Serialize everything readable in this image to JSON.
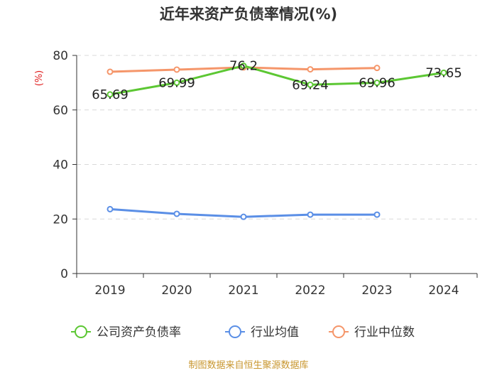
{
  "chart_data": {
    "type": "line",
    "title": "近年来资产负债率情况(%)",
    "ylabel": "(%)",
    "x": [
      "2019",
      "2020",
      "2021",
      "2022",
      "2023",
      "2024"
    ],
    "ylim": [
      0,
      80
    ],
    "yticks": [
      0,
      20,
      40,
      60,
      80
    ],
    "grid": true,
    "legend_position": "bottom",
    "series": [
      {
        "name": "公司资产负债率",
        "color": "#5cc733",
        "values": [
          65.69,
          69.99,
          76.2,
          69.24,
          69.96,
          73.65
        ],
        "labels": [
          "65.69",
          "69.99",
          "76.2",
          "69.24",
          "69.96",
          "73.65"
        ]
      },
      {
        "name": "行业均值",
        "color": "#5b8fe6",
        "values": [
          23.6,
          21.9,
          20.8,
          21.6,
          21.6,
          null
        ]
      },
      {
        "name": "行业中位数",
        "color": "#f5966a",
        "values": [
          74.0,
          74.8,
          75.6,
          74.9,
          75.4,
          null
        ]
      }
    ]
  },
  "source": "制图数据来自恒生聚源数据库"
}
